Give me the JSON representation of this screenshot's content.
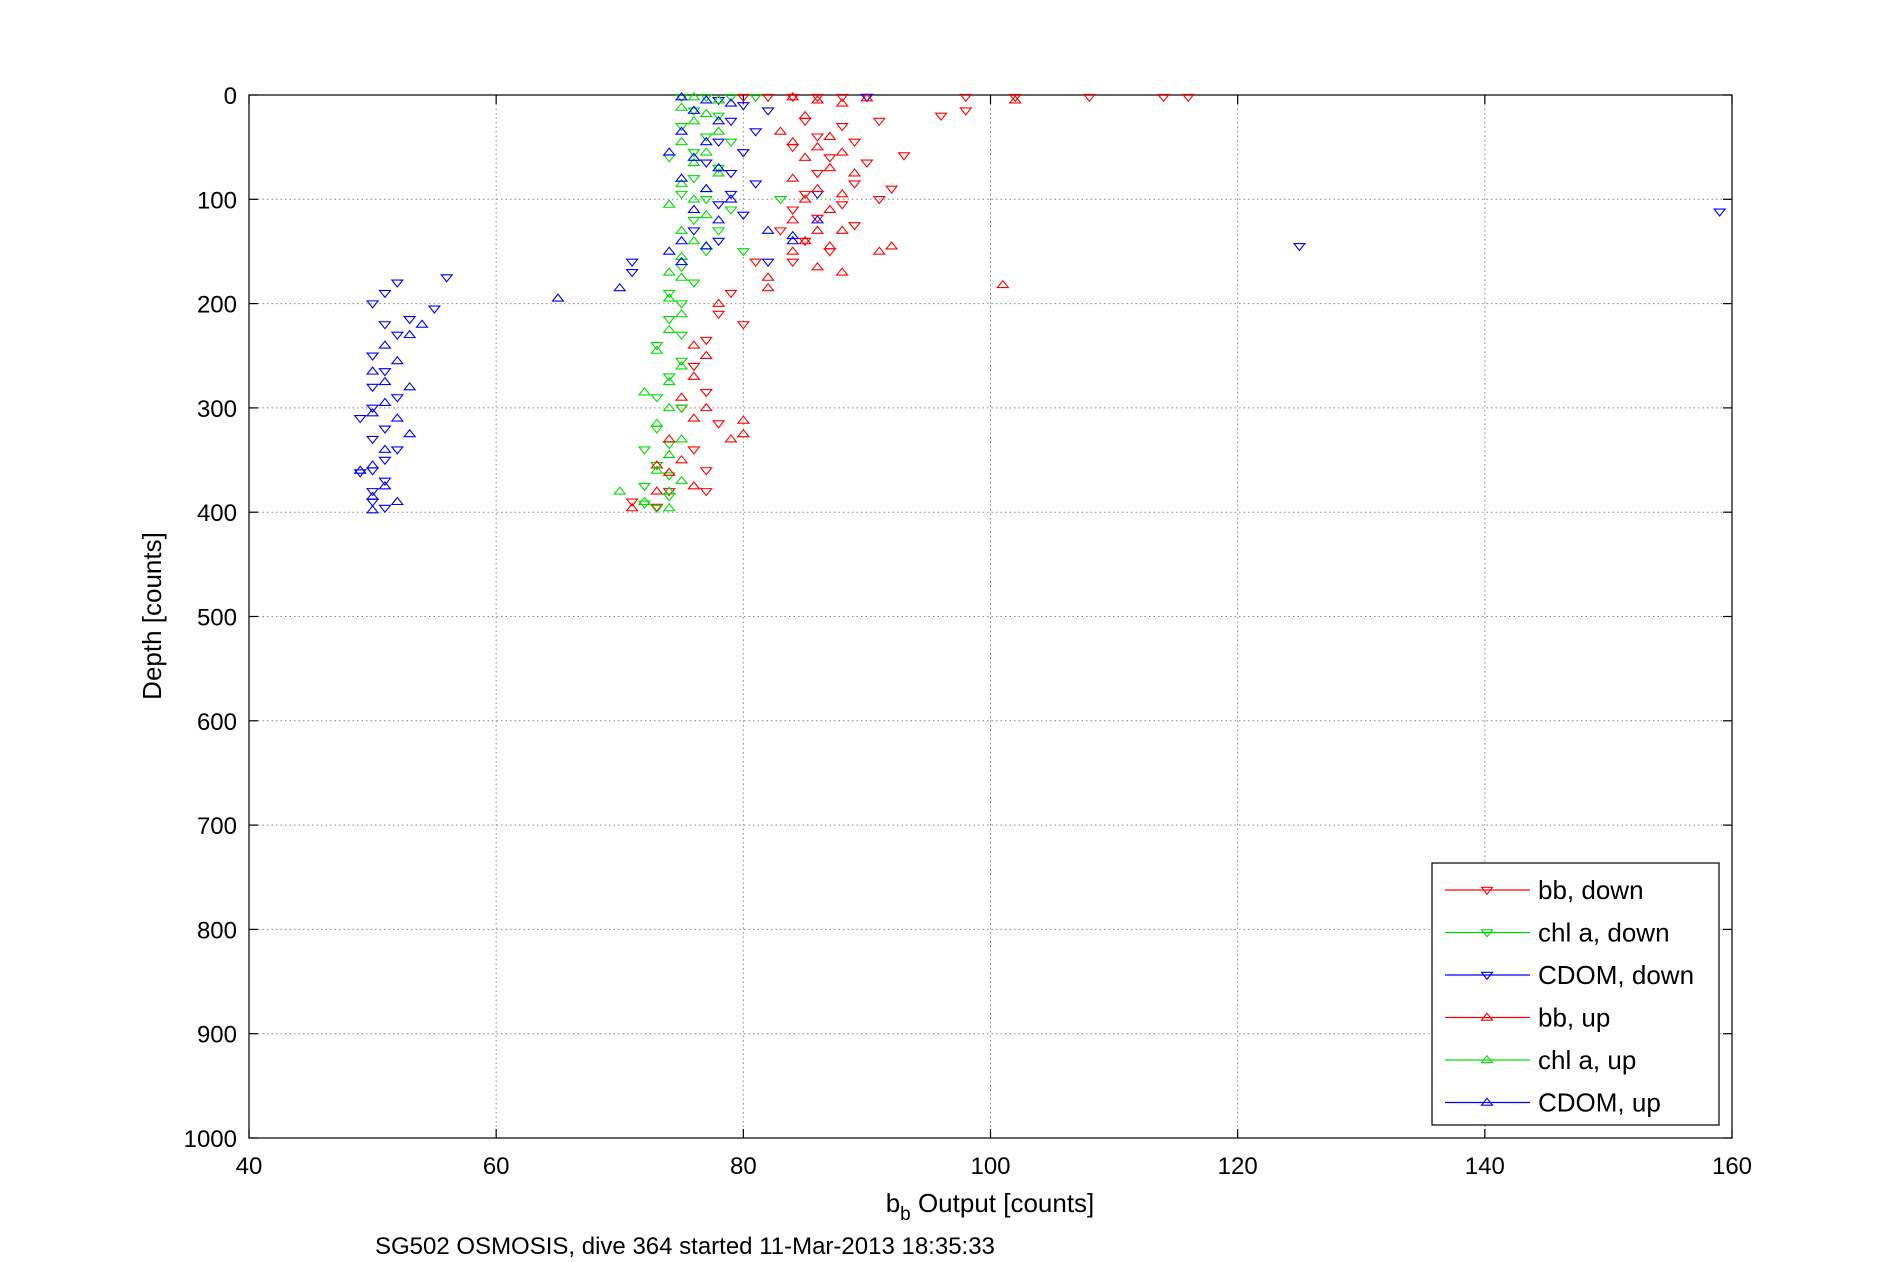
{
  "chart_data": {
    "type": "scatter",
    "title": "",
    "xlabel_main": "b",
    "xlabel_sub": "b",
    "xlabel_rest": " Output [counts]",
    "ylabel": "Depth [counts]",
    "caption": "SG502 OSMOSIS, dive 364 started 11-Mar-2013 18:35:33",
    "xlim": [
      40,
      160
    ],
    "ylim": [
      0,
      1000
    ],
    "y_reversed": true,
    "xticks": [
      "40",
      "60",
      "80",
      "100",
      "120",
      "140",
      "160"
    ],
    "yticks": [
      "0",
      "100",
      "200",
      "300",
      "400",
      "500",
      "600",
      "700",
      "800",
      "900",
      "1000"
    ],
    "grid": true,
    "legend_position": "bottom-right",
    "series": [
      {
        "name": "bb, down",
        "color": "#ff0000",
        "marker": "triangle-down",
        "points": [
          [
            80,
            2
          ],
          [
            82,
            2
          ],
          [
            84,
            2
          ],
          [
            86,
            2
          ],
          [
            88,
            2
          ],
          [
            90,
            2
          ],
          [
            98,
            2
          ],
          [
            102,
            2
          ],
          [
            108,
            2
          ],
          [
            114,
            2
          ],
          [
            116,
            2
          ],
          [
            96,
            20
          ],
          [
            98,
            15
          ],
          [
            91,
            25
          ],
          [
            88,
            30
          ],
          [
            85,
            25
          ],
          [
            86,
            40
          ],
          [
            89,
            45
          ],
          [
            84,
            50
          ],
          [
            87,
            60
          ],
          [
            90,
            65
          ],
          [
            93,
            58
          ],
          [
            86,
            75
          ],
          [
            89,
            85
          ],
          [
            92,
            90
          ],
          [
            91,
            100
          ],
          [
            85,
            95
          ],
          [
            88,
            105
          ],
          [
            84,
            110
          ],
          [
            86,
            118
          ],
          [
            89,
            125
          ],
          [
            83,
            130
          ],
          [
            85,
            140
          ],
          [
            87,
            150
          ],
          [
            84,
            160
          ],
          [
            81,
            160
          ],
          [
            79,
            190
          ],
          [
            78,
            210
          ],
          [
            80,
            220
          ],
          [
            77,
            235
          ],
          [
            76,
            260
          ],
          [
            77,
            285
          ],
          [
            75,
            300
          ],
          [
            78,
            315
          ],
          [
            76,
            340
          ],
          [
            77,
            360
          ],
          [
            74,
            380
          ],
          [
            71,
            390
          ],
          [
            73,
            395
          ],
          [
            77,
            380
          ]
        ]
      },
      {
        "name": "chl a, down",
        "color": "#00dd00",
        "marker": "triangle-down",
        "points": [
          [
            75,
            2
          ],
          [
            77,
            2
          ],
          [
            79,
            2
          ],
          [
            81,
            2
          ],
          [
            76,
            15
          ],
          [
            78,
            20
          ],
          [
            75,
            30
          ],
          [
            77,
            40
          ],
          [
            79,
            45
          ],
          [
            76,
            55
          ],
          [
            74,
            60
          ],
          [
            78,
            70
          ],
          [
            76,
            80
          ],
          [
            75,
            95
          ],
          [
            77,
            100
          ],
          [
            79,
            110
          ],
          [
            76,
            120
          ],
          [
            78,
            130
          ],
          [
            77,
            150
          ],
          [
            75,
            165
          ],
          [
            76,
            180
          ],
          [
            74,
            190
          ],
          [
            75,
            200
          ],
          [
            74,
            215
          ],
          [
            75,
            230
          ],
          [
            73,
            240
          ],
          [
            75,
            255
          ],
          [
            74,
            270
          ],
          [
            73,
            290
          ],
          [
            75,
            300
          ],
          [
            73,
            320
          ],
          [
            74,
            335
          ],
          [
            72,
            340
          ],
          [
            73,
            355
          ],
          [
            74,
            365
          ],
          [
            72,
            375
          ],
          [
            74,
            385
          ],
          [
            72,
            392
          ],
          [
            73,
            396
          ],
          [
            83,
            100
          ],
          [
            80,
            150
          ]
        ]
      },
      {
        "name": "CDOM, down",
        "color": "#0000ff",
        "marker": "triangle-down",
        "points": [
          [
            78,
            5
          ],
          [
            80,
            10
          ],
          [
            82,
            15
          ],
          [
            79,
            25
          ],
          [
            81,
            35
          ],
          [
            78,
            45
          ],
          [
            80,
            55
          ],
          [
            77,
            65
          ],
          [
            79,
            75
          ],
          [
            81,
            85
          ],
          [
            79,
            95
          ],
          [
            78,
            105
          ],
          [
            80,
            115
          ],
          [
            76,
            130
          ],
          [
            78,
            140
          ],
          [
            82,
            160
          ],
          [
            86,
            95
          ],
          [
            90,
            2
          ],
          [
            125,
            145
          ],
          [
            159,
            112
          ],
          [
            71,
            160
          ],
          [
            71,
            170
          ],
          [
            56,
            175
          ],
          [
            52,
            180
          ],
          [
            55,
            205
          ],
          [
            53,
            215
          ],
          [
            51,
            220
          ],
          [
            52,
            230
          ],
          [
            50,
            250
          ],
          [
            51,
            265
          ],
          [
            50,
            280
          ],
          [
            52,
            290
          ],
          [
            50,
            300
          ],
          [
            49,
            310
          ],
          [
            51,
            320
          ],
          [
            50,
            330
          ],
          [
            52,
            340
          ],
          [
            51,
            350
          ],
          [
            50,
            360
          ],
          [
            49,
            362
          ],
          [
            51,
            370
          ],
          [
            50,
            380
          ],
          [
            50,
            390
          ],
          [
            51,
            396
          ],
          [
            51,
            190
          ],
          [
            50,
            200
          ]
        ]
      },
      {
        "name": "bb, up",
        "color": "#ff0000",
        "marker": "triangle-up",
        "points": [
          [
            84,
            2
          ],
          [
            86,
            5
          ],
          [
            88,
            8
          ],
          [
            90,
            3
          ],
          [
            102,
            5
          ],
          [
            85,
            20
          ],
          [
            83,
            35
          ],
          [
            87,
            40
          ],
          [
            84,
            45
          ],
          [
            86,
            50
          ],
          [
            88,
            55
          ],
          [
            85,
            60
          ],
          [
            87,
            70
          ],
          [
            89,
            75
          ],
          [
            84,
            80
          ],
          [
            86,
            90
          ],
          [
            88,
            95
          ],
          [
            85,
            100
          ],
          [
            87,
            110
          ],
          [
            84,
            120
          ],
          [
            86,
            130
          ],
          [
            88,
            130
          ],
          [
            85,
            140
          ],
          [
            87,
            145
          ],
          [
            92,
            145
          ],
          [
            91,
            150
          ],
          [
            84,
            150
          ],
          [
            86,
            165
          ],
          [
            88,
            170
          ],
          [
            82,
            175
          ],
          [
            82,
            185
          ],
          [
            101,
            182
          ],
          [
            78,
            200
          ],
          [
            76,
            240
          ],
          [
            77,
            250
          ],
          [
            76,
            270
          ],
          [
            75,
            290
          ],
          [
            77,
            300
          ],
          [
            76,
            310
          ],
          [
            74,
            330
          ],
          [
            75,
            350
          ],
          [
            73,
            355
          ],
          [
            74,
            362
          ],
          [
            76,
            375
          ],
          [
            73,
            380
          ],
          [
            71,
            396
          ],
          [
            80,
            325
          ],
          [
            79,
            330
          ],
          [
            80,
            312
          ]
        ]
      },
      {
        "name": "chl a, up",
        "color": "#00dd00",
        "marker": "triangle-up",
        "points": [
          [
            76,
            2
          ],
          [
            78,
            5
          ],
          [
            75,
            12
          ],
          [
            77,
            18
          ],
          [
            76,
            25
          ],
          [
            78,
            35
          ],
          [
            75,
            45
          ],
          [
            77,
            55
          ],
          [
            76,
            65
          ],
          [
            78,
            75
          ],
          [
            75,
            85
          ],
          [
            77,
            90
          ],
          [
            76,
            100
          ],
          [
            74,
            105
          ],
          [
            77,
            115
          ],
          [
            75,
            130
          ],
          [
            76,
            140
          ],
          [
            77,
            145
          ],
          [
            75,
            155
          ],
          [
            74,
            170
          ],
          [
            75,
            175
          ],
          [
            74,
            195
          ],
          [
            75,
            210
          ],
          [
            74,
            225
          ],
          [
            73,
            245
          ],
          [
            75,
            260
          ],
          [
            74,
            275
          ],
          [
            72,
            285
          ],
          [
            74,
            300
          ],
          [
            73,
            315
          ],
          [
            75,
            330
          ],
          [
            74,
            345
          ],
          [
            73,
            360
          ],
          [
            75,
            370
          ],
          [
            74,
            380
          ],
          [
            70,
            380
          ],
          [
            72,
            390
          ],
          [
            74,
            396
          ]
        ]
      },
      {
        "name": "CDOM, up",
        "color": "#0000ff",
        "marker": "triangle-up",
        "points": [
          [
            75,
            2
          ],
          [
            77,
            5
          ],
          [
            79,
            8
          ],
          [
            76,
            15
          ],
          [
            78,
            25
          ],
          [
            75,
            35
          ],
          [
            77,
            45
          ],
          [
            74,
            55
          ],
          [
            76,
            60
          ],
          [
            78,
            70
          ],
          [
            75,
            80
          ],
          [
            77,
            90
          ],
          [
            79,
            100
          ],
          [
            76,
            110
          ],
          [
            78,
            120
          ],
          [
            75,
            140
          ],
          [
            77,
            145
          ],
          [
            74,
            150
          ],
          [
            75,
            160
          ],
          [
            65,
            195
          ],
          [
            70,
            185
          ],
          [
            54,
            220
          ],
          [
            53,
            230
          ],
          [
            51,
            240
          ],
          [
            52,
            255
          ],
          [
            50,
            265
          ],
          [
            51,
            275
          ],
          [
            53,
            280
          ],
          [
            51,
            295
          ],
          [
            50,
            305
          ],
          [
            52,
            310
          ],
          [
            53,
            325
          ],
          [
            51,
            340
          ],
          [
            50,
            355
          ],
          [
            49,
            360
          ],
          [
            51,
            375
          ],
          [
            50,
            385
          ],
          [
            52,
            390
          ],
          [
            50,
            398
          ],
          [
            82,
            130
          ],
          [
            84,
            135
          ],
          [
            86,
            120
          ],
          [
            84,
            140
          ]
        ]
      }
    ]
  }
}
